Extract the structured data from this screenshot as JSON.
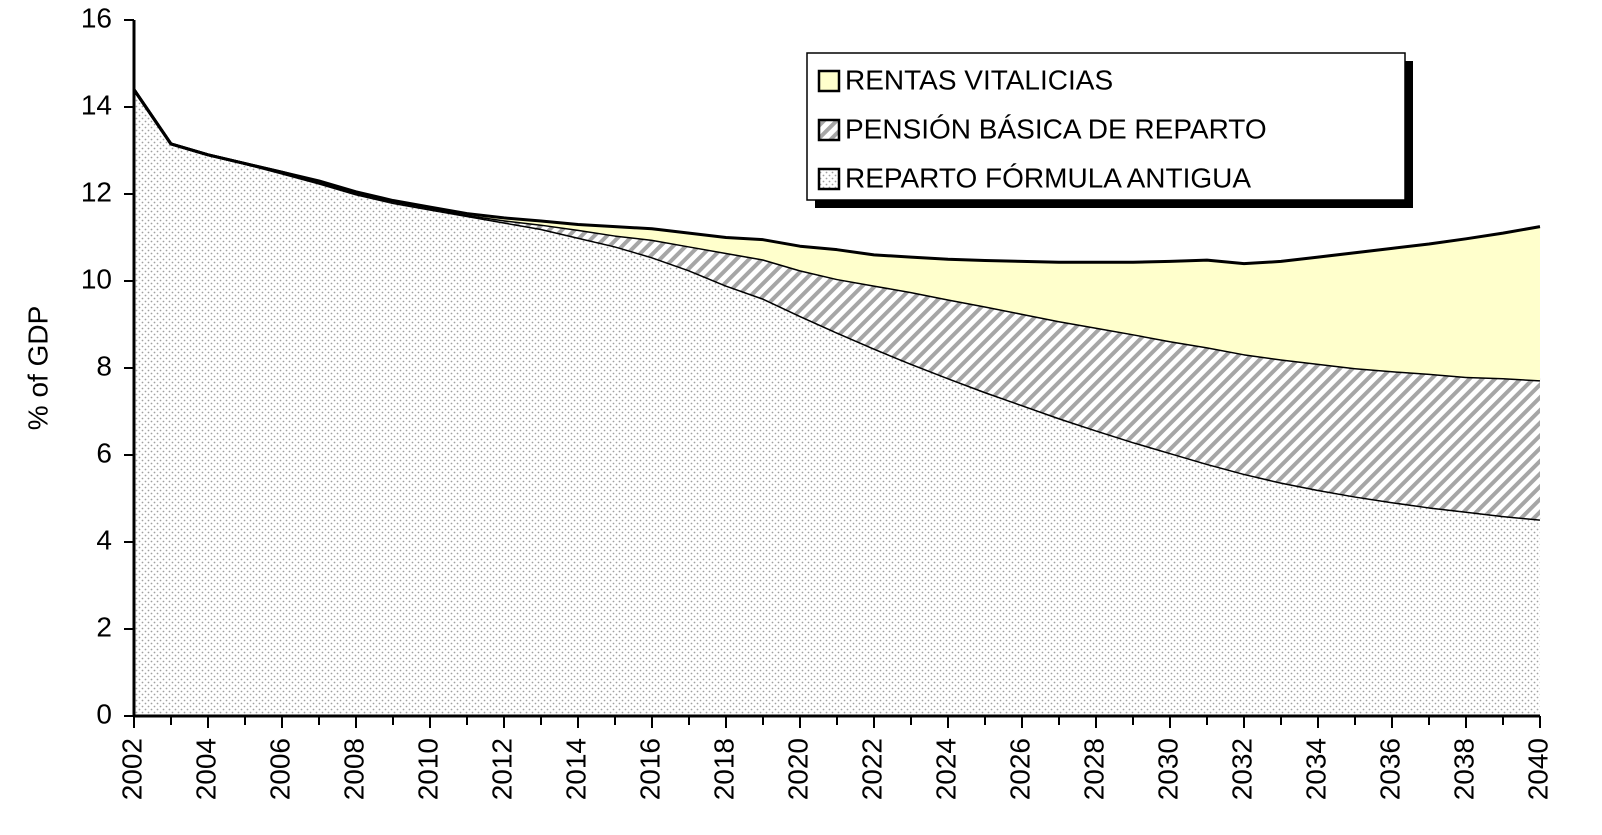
{
  "chart_data": {
    "type": "stacked_area",
    "y_label": "% of GDP",
    "x": [
      2002,
      2003,
      2004,
      2005,
      2006,
      2007,
      2008,
      2009,
      2010,
      2011,
      2012,
      2013,
      2014,
      2015,
      2016,
      2017,
      2018,
      2019,
      2020,
      2021,
      2022,
      2023,
      2024,
      2025,
      2026,
      2027,
      2028,
      2029,
      2030,
      2031,
      2032,
      2033,
      2034,
      2035,
      2036,
      2037,
      2038,
      2039,
      2040
    ],
    "series": [
      {
        "name": "REPARTO FÓRMULA ANTIGUA",
        "color": "#a0a0a0",
        "pattern": "dots",
        "values": [
          14.4,
          13.15,
          12.9,
          12.7,
          12.48,
          12.25,
          12.0,
          11.8,
          11.65,
          11.5,
          11.35,
          11.2,
          11.0,
          10.8,
          10.55,
          10.25,
          9.9,
          9.6,
          9.2,
          8.82,
          8.45,
          8.1,
          7.77,
          7.45,
          7.15,
          6.85,
          6.57,
          6.3,
          6.05,
          5.8,
          5.57,
          5.37,
          5.2,
          5.05,
          4.92,
          4.8,
          4.7,
          4.6,
          4.52
        ]
      },
      {
        "name": "PENSIÓN BÁSICA DE REPARTO",
        "color": "#a6a6a6",
        "pattern": "hatch",
        "values": [
          0,
          0,
          0,
          0,
          0.02,
          0.02,
          0.03,
          0.03,
          0.03,
          0.02,
          0.05,
          0.1,
          0.18,
          0.25,
          0.4,
          0.55,
          0.75,
          0.9,
          1.05,
          1.23,
          1.45,
          1.65,
          1.81,
          1.97,
          2.1,
          2.23,
          2.36,
          2.48,
          2.57,
          2.68,
          2.75,
          2.83,
          2.9,
          2.95,
          3.01,
          3.07,
          3.1,
          3.17,
          3.2
        ]
      },
      {
        "name": "RENTAS VITALICIAS",
        "color": "#ffffcc",
        "pattern": "solid",
        "values": [
          0,
          0,
          0,
          0,
          0,
          0.03,
          0.02,
          0.02,
          0.02,
          0.03,
          0.05,
          0.08,
          0.12,
          0.2,
          0.25,
          0.3,
          0.35,
          0.45,
          0.55,
          0.67,
          0.7,
          0.8,
          0.92,
          1.05,
          1.2,
          1.35,
          1.5,
          1.65,
          1.83,
          2.0,
          2.08,
          2.25,
          2.45,
          2.65,
          2.82,
          2.98,
          3.17,
          3.33,
          3.53
        ]
      }
    ],
    "xlim": [
      2002,
      2040
    ],
    "xticks": [
      2002,
      2004,
      2006,
      2008,
      2010,
      2012,
      2014,
      2016,
      2018,
      2020,
      2022,
      2024,
      2026,
      2028,
      2030,
      2032,
      2034,
      2036,
      2038,
      2040
    ],
    "ylim": [
      0,
      16
    ],
    "yticks": [
      0,
      2,
      4,
      6,
      8,
      10,
      12,
      14,
      16
    ],
    "legend": "top-right"
  }
}
